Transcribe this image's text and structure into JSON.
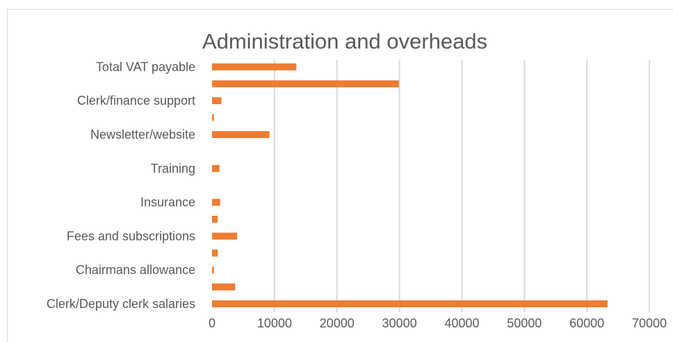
{
  "chart_data": {
    "type": "bar",
    "orientation": "horizontal",
    "title": "Administration and overheads",
    "xlabel": "",
    "ylabel": "",
    "xlim": [
      0,
      70000
    ],
    "x_ticks": [
      "0",
      "10000",
      "20000",
      "30000",
      "40000",
      "50000",
      "60000",
      "70000"
    ],
    "grid": true,
    "legend": "none",
    "bar_color": "#ed7d31",
    "categories": [
      "Clerk/Deputy clerk salaries",
      "",
      "Chairmans allowance",
      "",
      "Fees and subscriptions",
      "",
      "Insurance",
      "",
      "Training",
      "",
      "Newsletter/website",
      "",
      "Clerk/finance support",
      "",
      "Total VAT payable"
    ],
    "values": [
      63300,
      3700,
      300,
      900,
      4000,
      900,
      1300,
      0,
      1200,
      0,
      9200,
      300,
      1500,
      29900,
      13500
    ]
  }
}
